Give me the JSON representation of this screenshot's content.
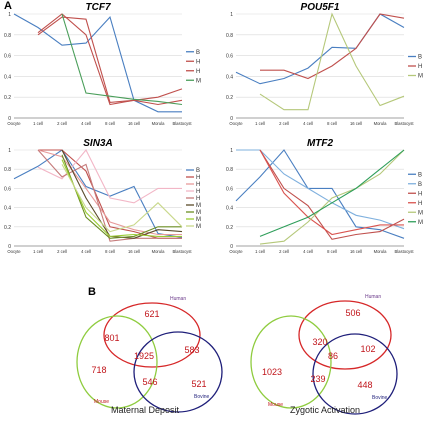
{
  "panel_a_label": "A",
  "panel_b_label": "B",
  "chart_data": [
    {
      "type": "line",
      "title": "TCF7",
      "categories": [
        "Oocyte",
        "1 cell",
        "2 cell",
        "4 cell",
        "8 cell",
        "16 cell",
        "Morula",
        "Blastocyst"
      ],
      "ylim": [
        0,
        1
      ],
      "yticks": [
        "0",
        "0.2",
        "0.4",
        "0.6",
        "0.8",
        "1"
      ],
      "legend_position": "right",
      "series": [
        {
          "name": "B",
          "color": "#4a7fc1",
          "values": [
            1.0,
            0.87,
            0.7,
            0.72,
            0.97,
            0.17,
            0.06,
            0.06
          ]
        },
        {
          "name": "H",
          "color": "#c0504d",
          "values": [
            null,
            0.8,
            0.97,
            0.95,
            0.15,
            0.17,
            0.2,
            0.28
          ]
        },
        {
          "name": "H",
          "color": "#c0504d",
          "values": [
            null,
            0.82,
            1.0,
            0.8,
            0.13,
            0.17,
            0.13,
            0.17
          ]
        },
        {
          "name": "M",
          "color": "#4a9e5a",
          "values": [
            null,
            null,
            1.0,
            0.24,
            0.21,
            0.18,
            0.16,
            0.13
          ]
        }
      ]
    },
    {
      "type": "line",
      "title": "POU5F1",
      "categories": [
        "Oocyte",
        "1 cell",
        "2 cell",
        "4 cell",
        "8 cell",
        "16 cell",
        "Morula",
        "Blastocyst"
      ],
      "ylim": [
        0,
        1
      ],
      "yticks": [
        "0",
        "0.2",
        "0.4",
        "0.6",
        "0.8",
        "1"
      ],
      "legend_position": "right",
      "series": [
        {
          "name": "B",
          "color": "#4a7fc1",
          "values": [
            0.44,
            0.33,
            0.38,
            0.48,
            0.68,
            0.67,
            1.0,
            0.87
          ]
        },
        {
          "name": "H",
          "color": "#c0504d",
          "values": [
            null,
            0.46,
            0.46,
            0.38,
            0.5,
            0.67,
            1.0,
            0.96
          ]
        },
        {
          "name": "M",
          "color": "#b5c87a",
          "values": [
            null,
            0.23,
            0.08,
            0.08,
            1.0,
            0.5,
            0.12,
            0.21
          ]
        }
      ]
    },
    {
      "type": "line",
      "title": "SIN3A",
      "categories": [
        "Oocyte",
        "1 cell",
        "2 cell",
        "4 cell",
        "8 cell",
        "16 cell",
        "Morula",
        "Blastocyst"
      ],
      "ylim": [
        0,
        1
      ],
      "yticks": [
        "0",
        "0.2",
        "0.4",
        "0.6",
        "0.8",
        "1"
      ],
      "legend_position": "right",
      "series": [
        {
          "name": "B",
          "color": "#4a7fc1",
          "values": [
            0.7,
            0.83,
            1.0,
            0.62,
            0.52,
            0.62,
            0.13,
            0.09
          ]
        },
        {
          "name": "H",
          "color": "#c0504d",
          "values": [
            null,
            1.0,
            1.0,
            0.78,
            0.2,
            0.15,
            0.08,
            0.08
          ]
        },
        {
          "name": "H",
          "color": "#e79a9a",
          "values": [
            null,
            1.0,
            0.93,
            0.6,
            0.25,
            0.17,
            0.12,
            0.12
          ]
        },
        {
          "name": "H",
          "color": "#f2b6c6",
          "values": [
            null,
            0.82,
            0.7,
            1.0,
            0.5,
            0.45,
            0.6,
            0.6
          ]
        },
        {
          "name": "H",
          "color": "#c57b7b",
          "values": [
            null,
            1.0,
            0.72,
            0.85,
            0.05,
            0.08,
            0.08,
            0.08
          ]
        },
        {
          "name": "M",
          "color": "#5a4a2a",
          "values": [
            null,
            null,
            1.0,
            0.5,
            0.1,
            0.08,
            0.17,
            0.15
          ]
        },
        {
          "name": "M",
          "color": "#6b8e23",
          "values": [
            null,
            null,
            0.95,
            0.3,
            0.08,
            0.1,
            0.2,
            0.2
          ]
        },
        {
          "name": "M",
          "color": "#9acd32",
          "values": [
            null,
            null,
            0.9,
            0.35,
            0.1,
            0.12,
            0.1,
            0.1
          ]
        },
        {
          "name": "M",
          "color": "#c8d88a",
          "values": [
            null,
            null,
            0.85,
            0.4,
            0.15,
            0.22,
            0.45,
            0.2
          ]
        }
      ]
    },
    {
      "type": "line",
      "title": "MTF2",
      "categories": [
        "Oocyte",
        "1 cell",
        "2 cell",
        "4 cell",
        "8 cell",
        "16 cell",
        "Morula",
        "Blastocyst"
      ],
      "ylim": [
        0,
        1
      ],
      "yticks": [
        "0",
        "0.2",
        "0.4",
        "0.6",
        "0.8",
        "1"
      ],
      "legend_position": "right",
      "series": [
        {
          "name": "B",
          "color": "#4a7fc1",
          "values": [
            0.47,
            0.72,
            1.0,
            0.6,
            0.6,
            0.2,
            0.17,
            0.08
          ]
        },
        {
          "name": "B",
          "color": "#7fb0de",
          "values": [
            1.0,
            1.0,
            0.75,
            0.6,
            0.45,
            0.32,
            0.27,
            0.18
          ]
        },
        {
          "name": "H",
          "color": "#c0504d",
          "values": [
            null,
            1.0,
            0.6,
            0.42,
            0.07,
            0.12,
            0.15,
            0.28
          ]
        },
        {
          "name": "H",
          "color": "#d9534f",
          "values": [
            null,
            1.0,
            0.55,
            0.3,
            0.12,
            0.17,
            0.22,
            0.22
          ]
        },
        {
          "name": "M",
          "color": "#b5c87a",
          "values": [
            null,
            0.02,
            0.05,
            0.25,
            0.5,
            0.6,
            0.75,
            1.0
          ]
        },
        {
          "name": "M",
          "color": "#2e9e5a",
          "values": [
            null,
            0.1,
            0.2,
            0.3,
            0.45,
            0.6,
            0.8,
            1.0
          ]
        }
      ]
    }
  ],
  "venns": [
    {
      "caption": "Maternal Deposit",
      "labels": {
        "human": "Human",
        "mouse": "Mouse",
        "bovine": "Bovine"
      },
      "colors": {
        "human": "#d62728",
        "mouse": "#8fcc3f",
        "bovine": "#1f1f7a",
        "numbers": "#c0141a"
      },
      "regions": {
        "human_only": "621",
        "human_mouse": "801",
        "all_three": "1925",
        "human_bovine": "583",
        "mouse_only": "718",
        "mouse_bovine": "546",
        "bovine_only": "521"
      }
    },
    {
      "caption": "Zygotic Activation",
      "labels": {
        "human": "Human",
        "mouse": "Mouse",
        "bovine": "Bovine"
      },
      "colors": {
        "human": "#d62728",
        "mouse": "#8fcc3f",
        "bovine": "#1f1f7a",
        "numbers": "#c0141a"
      },
      "regions": {
        "human_only": "506",
        "human_mouse": "320",
        "all_three": "86",
        "human_bovine": "102",
        "mouse_only": "1023",
        "mouse_bovine": "239",
        "bovine_only": "448"
      }
    }
  ]
}
